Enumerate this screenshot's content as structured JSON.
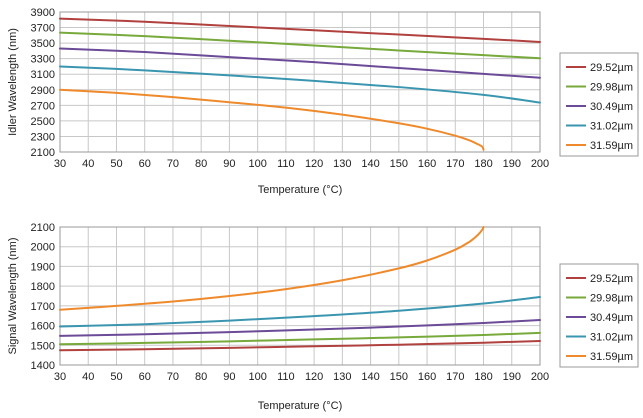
{
  "chart_data": [
    {
      "type": "line",
      "title": "",
      "xlabel": "Temperature (°C)",
      "ylabel": "Idler Wavelength (nm)",
      "xlim": [
        30,
        200
      ],
      "ylim": [
        2100,
        3900
      ],
      "xticks": [
        30,
        40,
        50,
        60,
        70,
        80,
        90,
        100,
        110,
        120,
        130,
        140,
        150,
        160,
        170,
        180,
        190,
        200
      ],
      "yticks": [
        2100,
        2300,
        2500,
        2700,
        2900,
        3100,
        3300,
        3500,
        3700,
        3900
      ],
      "grid": true,
      "legend_position": "right",
      "series": [
        {
          "name": "29.52µm",
          "color": "#b0413e",
          "x": [
            30,
            60,
            90,
            120,
            150,
            180,
            200
          ],
          "y": [
            3815,
            3775,
            3720,
            3665,
            3610,
            3555,
            3515
          ]
        },
        {
          "name": "29.98µm",
          "color": "#77a93b",
          "x": [
            30,
            60,
            90,
            120,
            150,
            180,
            200
          ],
          "y": [
            3635,
            3590,
            3530,
            3470,
            3405,
            3345,
            3305
          ]
        },
        {
          "name": "30.49µm",
          "color": "#6b4a97",
          "x": [
            30,
            60,
            90,
            120,
            150,
            180,
            200
          ],
          "y": [
            3430,
            3385,
            3320,
            3255,
            3180,
            3105,
            3055
          ]
        },
        {
          "name": "31.02µm",
          "color": "#3a96b0",
          "x": [
            30,
            60,
            90,
            120,
            150,
            180,
            200
          ],
          "y": [
            3200,
            3150,
            3085,
            3015,
            2935,
            2835,
            2735
          ]
        },
        {
          "name": "31.59µm",
          "color": "#ef8a2c",
          "x": [
            30,
            50,
            70,
            90,
            110,
            130,
            150,
            160,
            170,
            175,
            178,
            179.5,
            180
          ],
          "y": [
            2900,
            2860,
            2805,
            2740,
            2670,
            2580,
            2470,
            2400,
            2310,
            2250,
            2200,
            2170,
            2130
          ]
        }
      ]
    },
    {
      "type": "line",
      "title": "",
      "xlabel": "Temperature (°C)",
      "ylabel": "Signal Wavelength (nm)",
      "xlim": [
        30,
        200
      ],
      "ylim": [
        1400,
        2100
      ],
      "xticks": [
        30,
        40,
        50,
        60,
        70,
        80,
        90,
        100,
        110,
        120,
        130,
        140,
        150,
        160,
        170,
        180,
        190,
        200
      ],
      "yticks": [
        1400,
        1500,
        1600,
        1700,
        1800,
        1900,
        2000,
        2100
      ],
      "grid": true,
      "legend_position": "right",
      "series": [
        {
          "name": "29.52µm",
          "color": "#b0413e",
          "x": [
            30,
            60,
            90,
            120,
            150,
            180,
            200
          ],
          "y": [
            1475,
            1480,
            1487,
            1495,
            1503,
            1513,
            1522
          ]
        },
        {
          "name": "29.98µm",
          "color": "#77a93b",
          "x": [
            30,
            60,
            90,
            120,
            150,
            180,
            200
          ],
          "y": [
            1505,
            1512,
            1520,
            1530,
            1540,
            1552,
            1563
          ]
        },
        {
          "name": "30.49µm",
          "color": "#6b4a97",
          "x": [
            30,
            60,
            90,
            120,
            150,
            180,
            200
          ],
          "y": [
            1548,
            1556,
            1567,
            1580,
            1595,
            1613,
            1628
          ]
        },
        {
          "name": "31.02µm",
          "color": "#3a96b0",
          "x": [
            30,
            60,
            90,
            120,
            150,
            180,
            200
          ],
          "y": [
            1595,
            1607,
            1625,
            1648,
            1675,
            1712,
            1745
          ]
        },
        {
          "name": "31.59µm",
          "color": "#ef8a2c",
          "x": [
            30,
            50,
            70,
            90,
            110,
            130,
            150,
            160,
            170,
            175,
            178,
            179.5,
            180
          ],
          "y": [
            1680,
            1700,
            1722,
            1750,
            1785,
            1830,
            1890,
            1930,
            1985,
            2025,
            2060,
            2085,
            2100
          ]
        }
      ]
    }
  ]
}
